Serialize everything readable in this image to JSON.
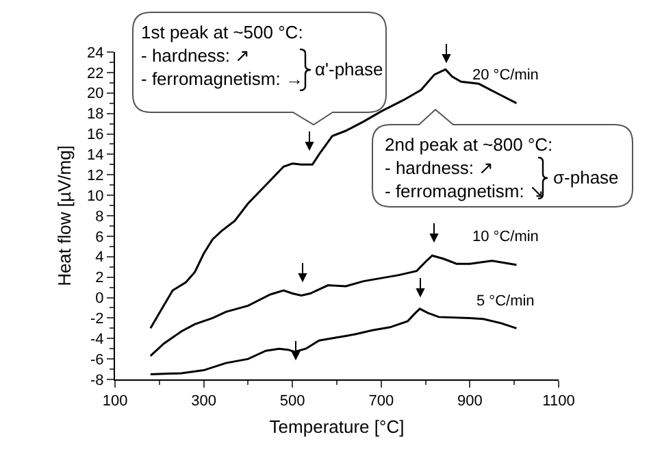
{
  "chart_data": {
    "type": "line",
    "xlabel": "Temperature [°C]",
    "ylabel": "Heat flow [µV/mg]",
    "xlim": [
      100,
      1100
    ],
    "ylim": [
      -8,
      24
    ],
    "xticks": [
      100,
      {
        "value": 200,
        "label": null
      },
      300,
      {
        "value": 400,
        "label": null
      },
      500,
      {
        "value": 600,
        "label": null
      },
      700,
      {
        "value": 800,
        "label": null
      },
      900,
      {
        "value": 1000,
        "label": null
      },
      1100
    ],
    "yticks": [
      -8,
      {
        "value": -7,
        "label": null
      },
      -6,
      {
        "value": -5,
        "label": null
      },
      -4,
      {
        "value": -3,
        "label": null
      },
      -2,
      {
        "value": -1,
        "label": null
      },
      0,
      {
        "value": 1,
        "label": null
      },
      2,
      {
        "value": 3,
        "label": null
      },
      4,
      {
        "value": 5,
        "label": null
      },
      6,
      {
        "value": 7,
        "label": null
      },
      8,
      {
        "value": 9,
        "label": null
      },
      10,
      {
        "value": 11,
        "label": null
      },
      12,
      {
        "value": 13,
        "label": null
      },
      14,
      {
        "value": 15,
        "label": null
      },
      16,
      {
        "value": 17,
        "label": null
      },
      18,
      {
        "value": 19,
        "label": null
      },
      20,
      {
        "value": 21,
        "label": null
      },
      22,
      {
        "value": 23,
        "label": null
      },
      24
    ],
    "grid": false,
    "series": [
      {
        "name": "20 °C/min",
        "color": "#000000",
        "x": [
          180,
          200,
          230,
          260,
          280,
          300,
          320,
          340,
          370,
          400,
          440,
          480,
          500,
          520,
          545,
          560,
          590,
          620,
          660,
          700,
          750,
          790,
          820,
          845,
          860,
          880,
          920,
          960,
          1005
        ],
        "values": [
          -3,
          -1.5,
          0.7,
          1.5,
          2.5,
          4.3,
          5.7,
          6.5,
          7.5,
          9.2,
          11,
          12.8,
          13.1,
          13,
          13,
          14,
          15.8,
          16.3,
          17.2,
          18.2,
          19.3,
          20.3,
          21.8,
          22.3,
          21.6,
          21.1,
          20.9,
          20,
          19
        ]
      },
      {
        "name": "10 °C/min",
        "color": "#000000",
        "x": [
          180,
          210,
          250,
          280,
          320,
          350,
          400,
          450,
          480,
          500,
          520,
          540,
          580,
          620,
          660,
          700,
          740,
          780,
          800,
          815,
          840,
          870,
          900,
          950,
          1005
        ],
        "values": [
          -5.7,
          -4.5,
          -3.3,
          -2.6,
          -2,
          -1.4,
          -0.8,
          0.3,
          0.7,
          0.4,
          0.2,
          0.4,
          1.2,
          1.1,
          1.6,
          1.9,
          2.2,
          2.6,
          3.5,
          4.1,
          3.8,
          3.3,
          3.3,
          3.6,
          3.2
        ]
      },
      {
        "name": "5 °C/min",
        "color": "#000000",
        "x": [
          180,
          250,
          300,
          350,
          400,
          440,
          470,
          490,
          505,
          530,
          560,
          600,
          640,
          680,
          720,
          760,
          775,
          787,
          805,
          830,
          900,
          930,
          970,
          1005
        ],
        "values": [
          -7.5,
          -7.4,
          -7.1,
          -6.4,
          -6,
          -5.2,
          -5,
          -5.1,
          -5.3,
          -5,
          -4.2,
          -3.9,
          -3.6,
          -3.2,
          -2.9,
          -2.3,
          -1.6,
          -1.1,
          -1.5,
          -1.9,
          -2,
          -2.1,
          -2.5,
          -3
        ]
      }
    ],
    "annotations": [
      "1st peak at ~500 °C:\n- hardness: ↗\n- ferromagnetism: →",
      "α'-phase",
      "2nd peak at ~800 °C:\n- hardness: ↗\n- ferromagnetism: ↘",
      "σ-phase"
    ]
  }
}
